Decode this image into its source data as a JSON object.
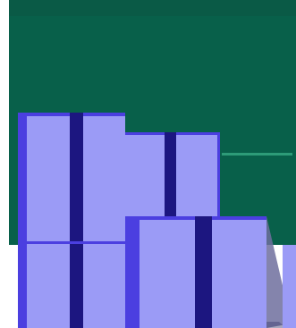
{
  "scene": {
    "description_visible_text": "",
    "colors": {
      "background_panel": "#08604a",
      "panel_top_band": "#0a5a46",
      "block_face": "#9b9bf6",
      "block_edge": "#4b3fe0",
      "block_stripe": "#1c1680",
      "shadow": "#6f6f9d",
      "shadow_dark": "#3d3d72",
      "rail_line": "#2d9b78",
      "white": "#ffffff"
    }
  }
}
